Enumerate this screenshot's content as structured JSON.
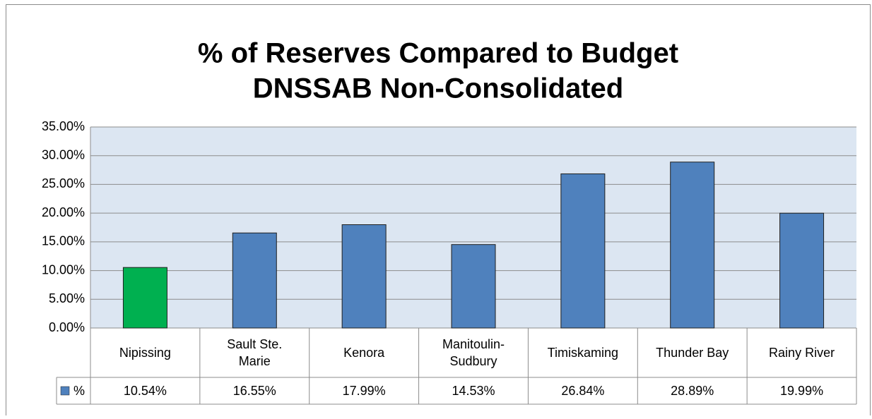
{
  "chart_data": {
    "type": "bar",
    "title": "% of Reserves Compared to Budget",
    "subtitle": "DNSSAB Non-Consolidated",
    "categories": [
      "Nipissing",
      "Sault Ste. Marie",
      "Kenora",
      "Manitoulin-Sudbury",
      "Timiskaming",
      "Thunder Bay",
      "Rainy River"
    ],
    "series": [
      {
        "name": "%",
        "color": "#4f81bd",
        "colors": [
          "#00b050",
          "#4f81bd",
          "#4f81bd",
          "#4f81bd",
          "#4f81bd",
          "#4f81bd",
          "#4f81bd"
        ],
        "values": [
          10.54,
          16.55,
          17.99,
          14.53,
          26.84,
          28.89,
          19.99
        ],
        "value_labels": [
          "10.54%",
          "16.55%",
          "17.99%",
          "14.53%",
          "26.84%",
          "28.89%",
          "19.99%"
        ]
      }
    ],
    "ylim": [
      0,
      35
    ],
    "yticks": [
      {
        "value": 0,
        "label": "0.00%"
      },
      {
        "value": 5,
        "label": "5.00%"
      },
      {
        "value": 10,
        "label": "10.00%"
      },
      {
        "value": 15,
        "label": "15.00%"
      },
      {
        "value": 20,
        "label": "20.00%"
      },
      {
        "value": 25,
        "label": "25.00%"
      },
      {
        "value": 30,
        "label": "30.00%"
      },
      {
        "value": 35,
        "label": "35.00%"
      }
    ],
    "grid": true
  }
}
